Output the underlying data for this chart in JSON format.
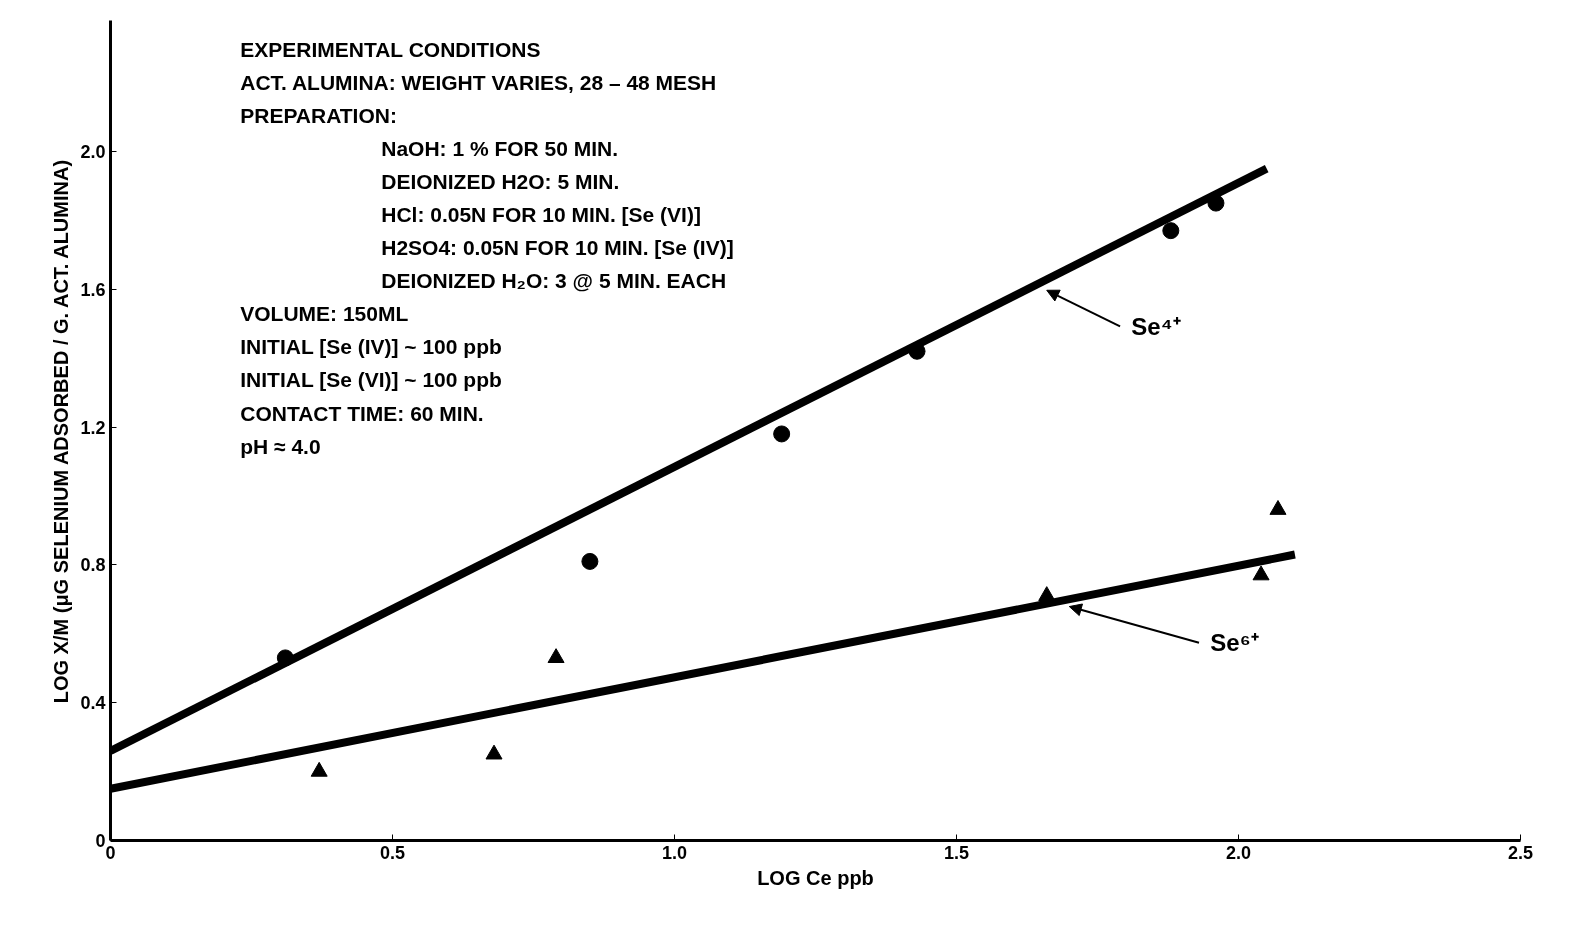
{
  "chart_data": {
    "type": "scatter",
    "xlabel": "LOG Ce ppb",
    "ylabel": "LOG X/M (μG SELENIUM ADSORBED / G. ACT. ALUMINA)",
    "xlim": [
      0,
      2.5
    ],
    "ylim": [
      0,
      2.38
    ],
    "xticks": [
      0,
      {
        "value": 0.5,
        "label": "0.5"
      },
      {
        "value": 1.0,
        "label": "1.0"
      },
      {
        "value": 1.5,
        "label": "1.5"
      },
      {
        "value": 2.0,
        "label": "2.0"
      },
      {
        "value": 2.5,
        "label": "2.5"
      }
    ],
    "yticks": [
      0,
      {
        "value": 0.4,
        "label": "0.4"
      },
      {
        "value": 0.8,
        "label": "0.8"
      },
      {
        "value": 1.2,
        "label": "1.2"
      },
      {
        "value": 1.6,
        "label": "1.6"
      },
      {
        "value": 2.0,
        "label": "2.0"
      }
    ],
    "grid": false,
    "series": [
      {
        "marker": "circle",
        "color": "#000000",
        "x": [
          0.31,
          0.85,
          1.19,
          1.43,
          1.88,
          1.96
        ],
        "values": [
          0.53,
          0.81,
          1.18,
          1.42,
          1.77,
          1.85
        ]
      },
      {
        "marker": "triangle",
        "color": "#000000",
        "x": [
          0.37,
          0.68,
          0.79,
          1.66,
          2.04,
          2.07
        ],
        "values": [
          0.2,
          0.25,
          0.53,
          0.71,
          0.77,
          0.96
        ]
      },
      {
        "type": "line",
        "name": "Se⁴⁺",
        "color": "#000000",
        "x": [
          0,
          2.05
        ],
        "values": [
          0.26,
          1.95
        ]
      },
      {
        "type": "line",
        "name": "Se⁶⁺",
        "color": "#000000",
        "x": [
          0,
          2.1
        ],
        "values": [
          0.15,
          0.83
        ]
      }
    ],
    "annotations": [
      "EXPERIMENTAL CONDITIONS",
      "ACT. ALUMINA: WEIGHT VARIES, 28 – 48 MESH",
      "PREPARATION:",
      "NaOH: 1 % FOR 50 MIN.",
      "DEIONIZED H2O: 5 MIN.",
      "HCl: 0.05N FOR 10 MIN. [Se (VI)]",
      "H2SO4: 0.05N FOR 10 MIN. [Se (IV)]",
      "DEIONIZED H₂O: 3 @ 5 MIN. EACH",
      "VOLUME: 150ML",
      "INITIAL [Se (IV)] ~ 100 ppb",
      "INITIAL [Se (VI)] ~ 100 ppb",
      "CONTACT TIME: 60 MIN.",
      "pH ≈ 4.0"
    ]
  }
}
